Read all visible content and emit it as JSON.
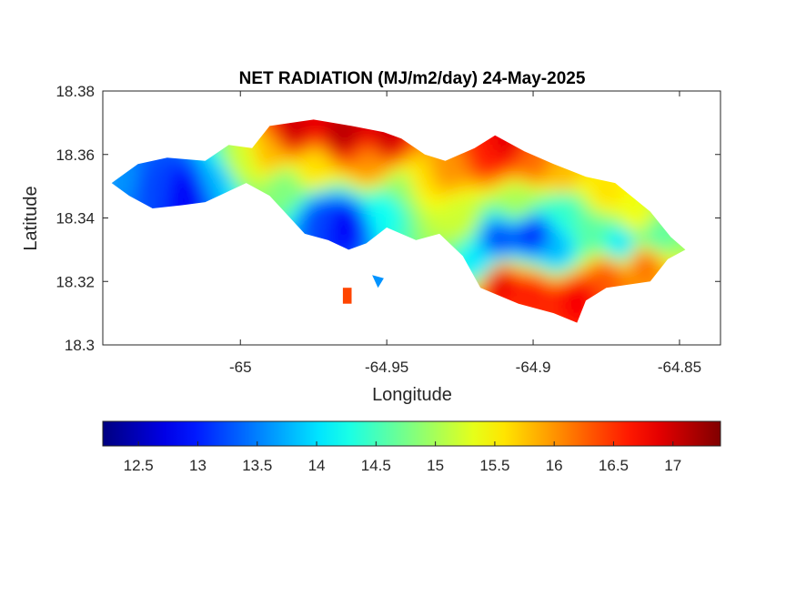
{
  "chart_data": {
    "type": "heatmap",
    "title": "NET RADIATION (MJ/m2/day) 24-May-2025",
    "xlabel": "Longitude",
    "ylabel": "Latitude",
    "xlim": [
      -65.047,
      -64.836
    ],
    "ylim": [
      18.3,
      18.38
    ],
    "xticks": [
      -65,
      -64.95,
      -64.9,
      -64.85
    ],
    "xtick_labels": [
      "-65",
      "-64.95",
      "-64.9",
      "-64.85"
    ],
    "yticks": [
      18.3,
      18.32,
      18.34,
      18.36,
      18.38
    ],
    "ytick_labels": [
      "18.3",
      "18.32",
      "18.34",
      "18.36",
      "18.38"
    ],
    "grid": false,
    "colormap": "jet",
    "colorbar": {
      "orientation": "horizontal",
      "placement": "below",
      "range": [
        12.2,
        17.4
      ],
      "ticks": [
        12.5,
        13,
        13.5,
        14,
        14.5,
        15,
        15.5,
        16,
        16.5,
        17
      ],
      "tick_labels": [
        "12.5",
        "13",
        "13.5",
        "14",
        "14.5",
        "15",
        "15.5",
        "16",
        "16.5",
        "17"
      ]
    },
    "region_polygon": [
      [
        -65.044,
        18.351
      ],
      [
        -65.035,
        18.357
      ],
      [
        -65.025,
        18.359
      ],
      [
        -65.012,
        18.358
      ],
      [
        -65.004,
        18.363
      ],
      [
        -64.996,
        18.362
      ],
      [
        -64.99,
        18.369
      ],
      [
        -64.975,
        18.371
      ],
      [
        -64.962,
        18.369
      ],
      [
        -64.951,
        18.367
      ],
      [
        -64.945,
        18.365
      ],
      [
        -64.937,
        18.36
      ],
      [
        -64.93,
        18.358
      ],
      [
        -64.92,
        18.362
      ],
      [
        -64.913,
        18.366
      ],
      [
        -64.903,
        18.361
      ],
      [
        -64.893,
        18.357
      ],
      [
        -64.882,
        18.353
      ],
      [
        -64.872,
        18.351
      ],
      [
        -64.86,
        18.342
      ],
      [
        -64.853,
        18.334
      ],
      [
        -64.848,
        18.33
      ],
      [
        -64.854,
        18.327
      ],
      [
        -64.86,
        18.32
      ],
      [
        -64.875,
        18.318
      ],
      [
        -64.882,
        18.314
      ],
      [
        -64.885,
        18.307
      ],
      [
        -64.893,
        18.31
      ],
      [
        -64.905,
        18.313
      ],
      [
        -64.918,
        18.318
      ],
      [
        -64.924,
        18.328
      ],
      [
        -64.932,
        18.335
      ],
      [
        -64.94,
        18.333
      ],
      [
        -64.95,
        18.337
      ],
      [
        -64.957,
        18.332
      ],
      [
        -64.963,
        18.33
      ],
      [
        -64.97,
        18.333
      ],
      [
        -64.978,
        18.335
      ],
      [
        -64.985,
        18.342
      ],
      [
        -64.99,
        18.347
      ],
      [
        -64.998,
        18.351
      ],
      [
        -65.005,
        18.348
      ],
      [
        -65.012,
        18.345
      ],
      [
        -65.02,
        18.344
      ],
      [
        -65.03,
        18.343
      ],
      [
        -65.038,
        18.347
      ],
      [
        -65.044,
        18.351
      ]
    ],
    "islets": [
      {
        "polygon": [
          [
            -64.955,
            18.322
          ],
          [
            -64.951,
            18.321
          ],
          [
            -64.953,
            18.318
          ]
        ],
        "value": 13.6
      },
      {
        "polygon": [
          [
            -64.965,
            18.318
          ],
          [
            -64.962,
            18.318
          ],
          [
            -64.962,
            18.313
          ],
          [
            -64.965,
            18.313
          ]
        ],
        "value": 16.4
      }
    ],
    "anchors": [
      {
        "lon": -65.03,
        "lat": 18.35,
        "value": 13.2
      },
      {
        "lon": -65.018,
        "lat": 18.348,
        "value": 12.8
      },
      {
        "lon": -65.04,
        "lat": 18.352,
        "value": 13.6
      },
      {
        "lon": -65.008,
        "lat": 18.352,
        "value": 13.8
      },
      {
        "lon": -65.0,
        "lat": 18.357,
        "value": 15.2
      },
      {
        "lon": -64.99,
        "lat": 18.36,
        "value": 15.8
      },
      {
        "lon": -64.982,
        "lat": 18.367,
        "value": 17.0
      },
      {
        "lon": -64.965,
        "lat": 18.366,
        "value": 17.1
      },
      {
        "lon": -64.95,
        "lat": 18.364,
        "value": 17.0
      },
      {
        "lon": -64.975,
        "lat": 18.356,
        "value": 15.6
      },
      {
        "lon": -64.955,
        "lat": 18.357,
        "value": 16.0
      },
      {
        "lon": -64.985,
        "lat": 18.35,
        "value": 14.8
      },
      {
        "lon": -64.972,
        "lat": 18.34,
        "value": 13.2
      },
      {
        "lon": -64.965,
        "lat": 18.338,
        "value": 12.8
      },
      {
        "lon": -64.95,
        "lat": 18.343,
        "value": 14.2
      },
      {
        "lon": -64.945,
        "lat": 18.349,
        "value": 14.9
      },
      {
        "lon": -64.938,
        "lat": 18.352,
        "value": 15.6
      },
      {
        "lon": -64.93,
        "lat": 18.355,
        "value": 16.0
      },
      {
        "lon": -64.915,
        "lat": 18.36,
        "value": 16.6
      },
      {
        "lon": -64.91,
        "lat": 18.363,
        "value": 16.9
      },
      {
        "lon": -64.9,
        "lat": 18.357,
        "value": 16.2
      },
      {
        "lon": -64.89,
        "lat": 18.353,
        "value": 15.8
      },
      {
        "lon": -64.875,
        "lat": 18.348,
        "value": 15.6
      },
      {
        "lon": -64.865,
        "lat": 18.34,
        "value": 15.4
      },
      {
        "lon": -64.858,
        "lat": 18.334,
        "value": 14.6
      },
      {
        "lon": -64.862,
        "lat": 18.326,
        "value": 16.2
      },
      {
        "lon": -64.875,
        "lat": 18.322,
        "value": 16.3
      },
      {
        "lon": -64.885,
        "lat": 18.315,
        "value": 16.8
      },
      {
        "lon": -64.9,
        "lat": 18.316,
        "value": 16.6
      },
      {
        "lon": -64.912,
        "lat": 18.32,
        "value": 16.9
      },
      {
        "lon": -64.918,
        "lat": 18.326,
        "value": 14.0
      },
      {
        "lon": -64.912,
        "lat": 18.333,
        "value": 13.2
      },
      {
        "lon": -64.9,
        "lat": 18.335,
        "value": 13.0
      },
      {
        "lon": -64.892,
        "lat": 18.33,
        "value": 13.8
      },
      {
        "lon": -64.88,
        "lat": 18.335,
        "value": 14.6
      },
      {
        "lon": -64.87,
        "lat": 18.332,
        "value": 14.0
      },
      {
        "lon": -64.925,
        "lat": 18.34,
        "value": 15.2
      },
      {
        "lon": -64.905,
        "lat": 18.345,
        "value": 15.0
      },
      {
        "lon": -64.89,
        "lat": 18.343,
        "value": 14.4
      }
    ]
  }
}
